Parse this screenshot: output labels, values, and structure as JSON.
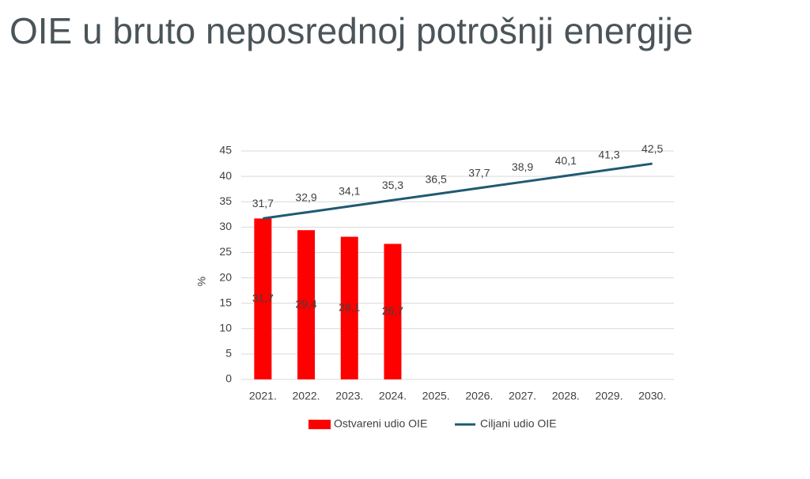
{
  "chart_data": {
    "type": "bar-line",
    "title": "OIE u bruto neposrednoj potrošnji energije",
    "y_label": "%",
    "categories": [
      "2021.",
      "2022.",
      "2023.",
      "2024.",
      "2025.",
      "2026.",
      "2027.",
      "2028.",
      "2029.",
      "2030."
    ],
    "series": [
      {
        "name": "Ostvareni udio OIE",
        "type": "bar",
        "color": "#ff0000",
        "values": [
          31.7,
          29.4,
          28.1,
          26.7,
          null,
          null,
          null,
          null,
          null,
          null
        ],
        "value_labels": [
          "31,7",
          "29,4",
          "28,1",
          "26,7",
          null,
          null,
          null,
          null,
          null,
          null
        ]
      },
      {
        "name": "Ciljani udio OIE",
        "type": "line",
        "color": "#1f5a73",
        "values": [
          31.7,
          32.9,
          34.1,
          35.3,
          36.5,
          37.7,
          38.9,
          40.1,
          41.3,
          42.5
        ],
        "value_labels": [
          "31,7",
          "32,9",
          "34,1",
          "35,3",
          "36,5",
          "37,7",
          "38,9",
          "40,1",
          "41,3",
          "42,5"
        ]
      }
    ],
    "ylim": [
      0,
      45
    ],
    "yticks": [
      0,
      5,
      10,
      15,
      20,
      25,
      30,
      35,
      40,
      45
    ],
    "grid": true
  }
}
